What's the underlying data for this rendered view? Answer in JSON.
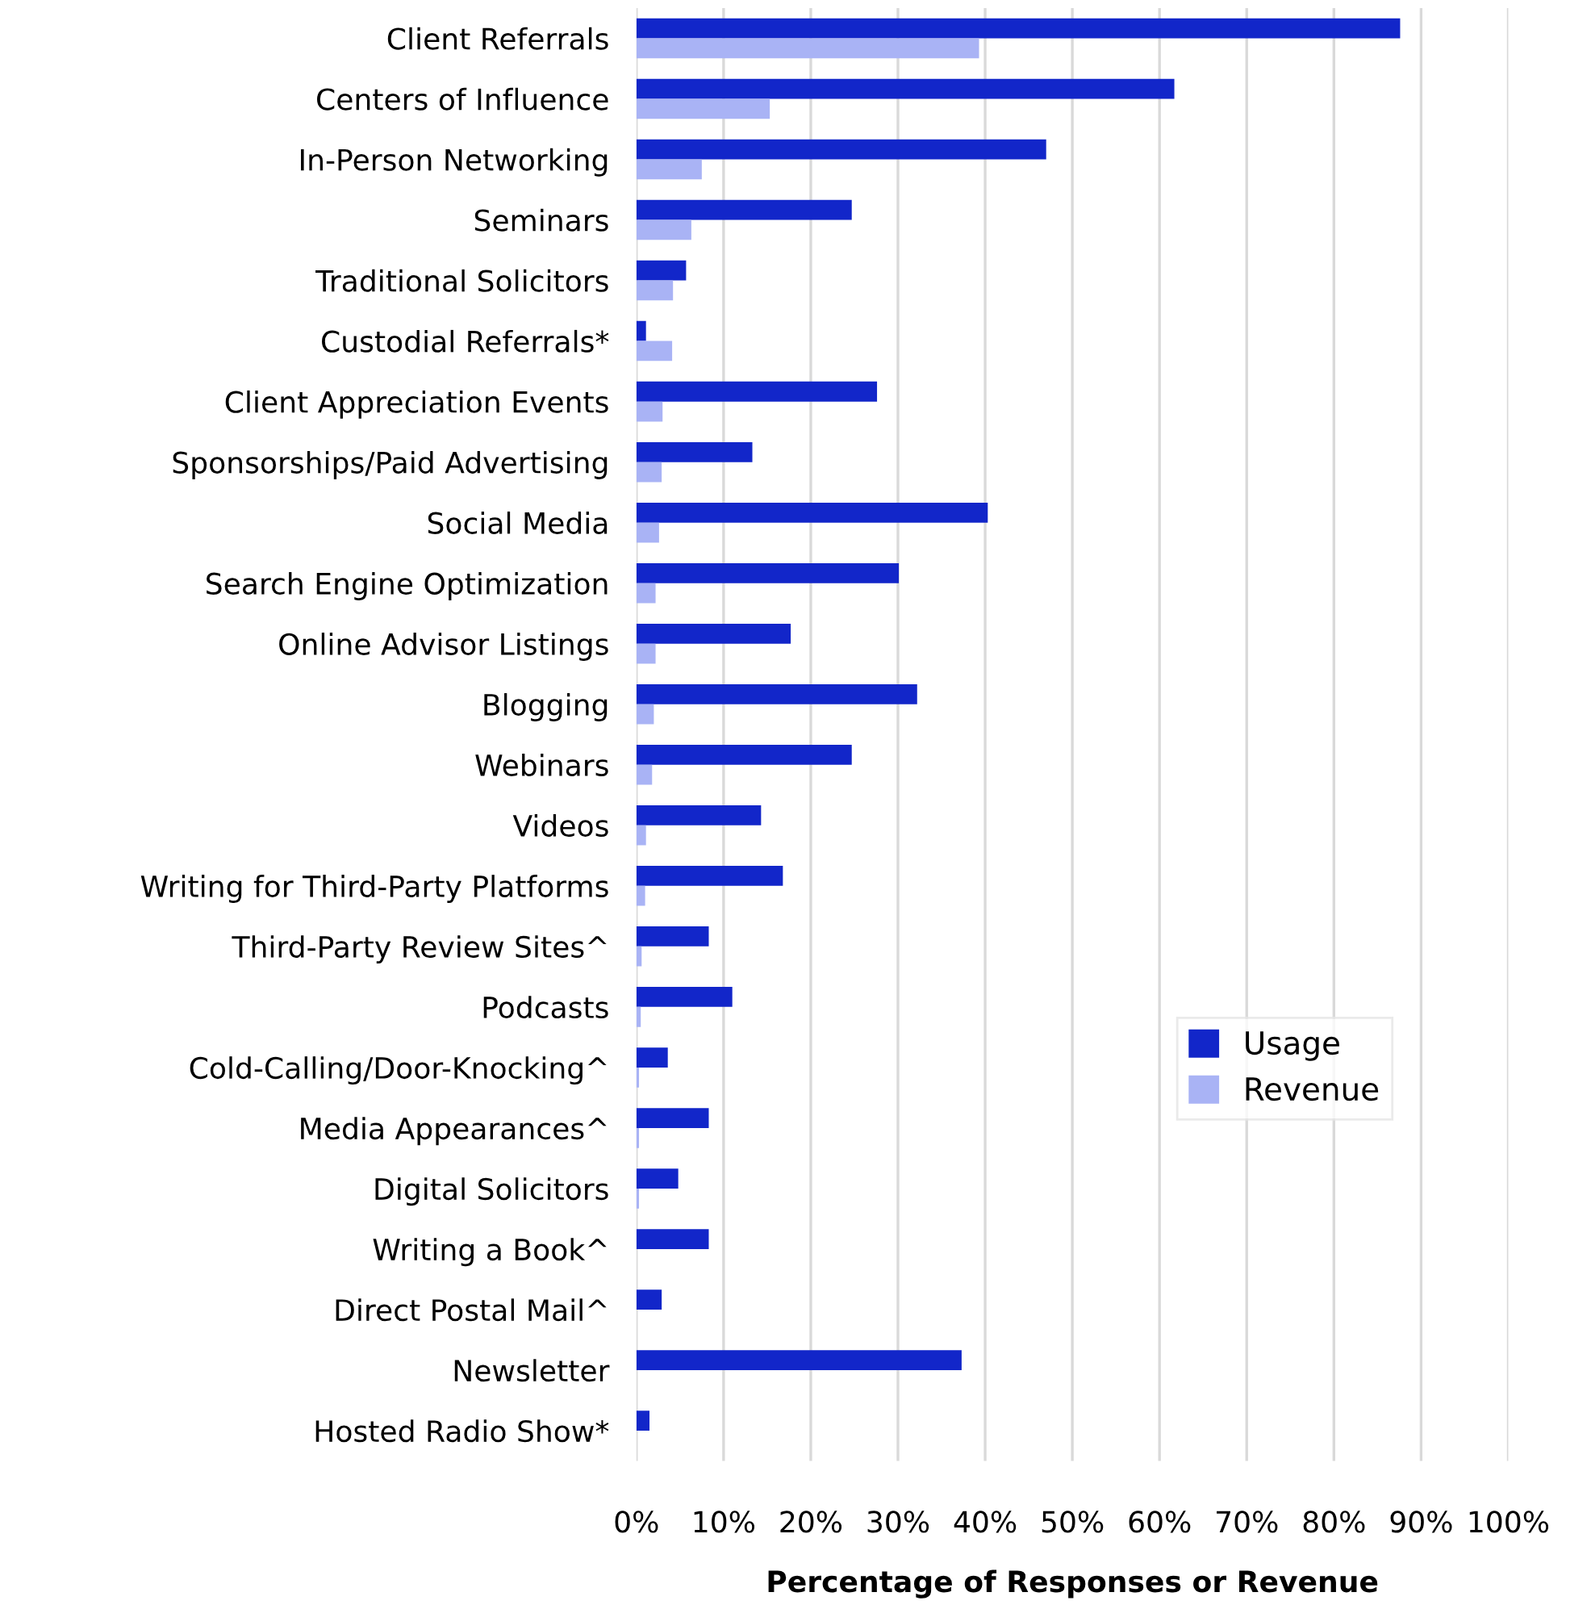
{
  "chart_data": {
    "type": "bar",
    "orientation": "horizontal",
    "xlabel": "Percentage of Responses or Revenue",
    "categories": [
      "Client Referrals",
      "Centers of Influence",
      "In-Person Networking",
      "Seminars",
      "Traditional Solicitors",
      "Custodial Referrals*",
      "Client Appreciation Events",
      "Sponsorships/Paid Advertising",
      "Social Media",
      "Search Engine Optimization",
      "Online Advisor Listings",
      "Blogging",
      "Webinars",
      "Videos",
      "Writing for Third-Party Platforms",
      "Third-Party Review Sites^",
      "Podcasts",
      "Cold-Calling/Door-Knocking^",
      "Media Appearances^",
      "Digital Solicitors",
      "Writing a Book^",
      "Direct Postal Mail^",
      "Newsletter",
      "Hosted Radio Show*"
    ],
    "series": [
      {
        "name": "Usage",
        "color": "#1226c9",
        "values": [
          87.6,
          61.7,
          47.0,
          24.7,
          5.7,
          1.1,
          27.6,
          13.3,
          40.3,
          30.1,
          17.7,
          32.2,
          24.7,
          14.3,
          16.8,
          8.3,
          11.0,
          3.6,
          8.3,
          4.8,
          8.3,
          2.9,
          37.3,
          1.5
        ]
      },
      {
        "name": "Revenue",
        "color": "#a9b3f5",
        "values": [
          39.3,
          15.3,
          7.5,
          6.3,
          4.2,
          4.1,
          3.0,
          2.9,
          2.6,
          2.2,
          2.2,
          2.0,
          1.8,
          1.1,
          1.0,
          0.6,
          0.5,
          0.3,
          0.3,
          0.3,
          null,
          null,
          null,
          0
        ]
      }
    ],
    "xlim": [
      0,
      100
    ],
    "xticks": [
      {
        "value": 0,
        "label": "0%"
      },
      {
        "value": 10,
        "label": "10%"
      },
      {
        "value": 20,
        "label": "20%"
      },
      {
        "value": 30,
        "label": "30%"
      },
      {
        "value": 40,
        "label": "40%"
      },
      {
        "value": 50,
        "label": "50%"
      },
      {
        "value": 60,
        "label": "60%"
      },
      {
        "value": 70,
        "label": "70%"
      },
      {
        "value": 80,
        "label": "80%"
      },
      {
        "value": 90,
        "label": "90%"
      },
      {
        "value": 100,
        "label": "100%"
      }
    ],
    "grid": "x",
    "legend": "right"
  }
}
